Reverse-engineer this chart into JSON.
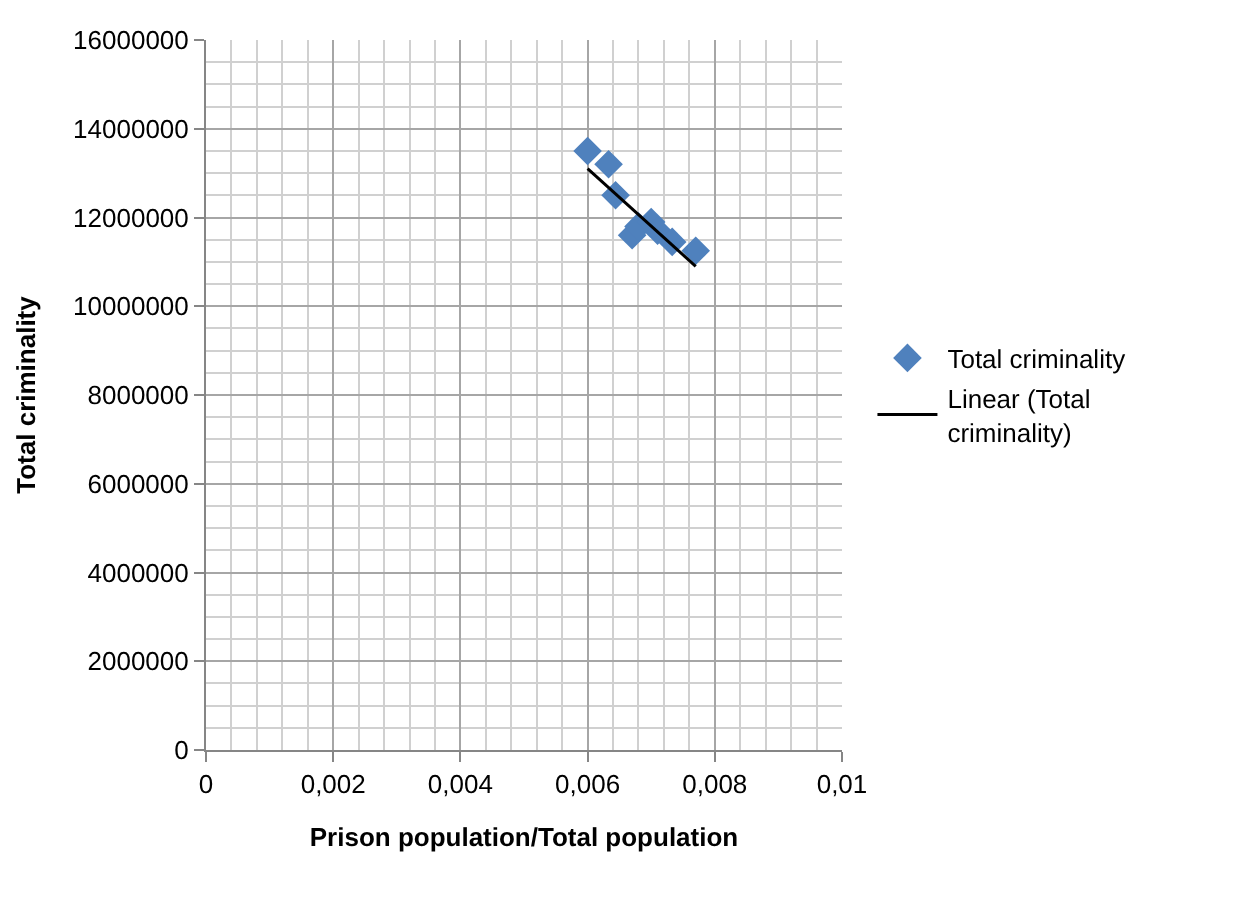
{
  "chart_data": {
    "type": "scatter",
    "xlabel": "Prison population/Total population",
    "ylabel": "Total criminality",
    "series": [
      {
        "name": "Total criminality",
        "color": "#4f81bd",
        "marker": "diamond",
        "x": [
          0.006,
          0.00633,
          0.00644,
          0.0067,
          0.0068,
          0.007,
          0.0071,
          0.00733,
          0.0077
        ],
        "values": [
          13500000,
          13200000,
          12500000,
          11600000,
          11800000,
          11900000,
          11700000,
          11450000,
          11250000
        ]
      },
      {
        "name": "Linear (Total criminality)",
        "type": "line",
        "color": "#000000",
        "marker": "none",
        "line_style": "solid",
        "x": [
          0.006,
          0.0077
        ],
        "values": [
          13100000,
          10900000
        ]
      }
    ],
    "xlim": [
      0,
      0.01
    ],
    "xticks": [
      0,
      {
        "value": 0.002,
        "label": "0,002"
      },
      {
        "value": 0.004,
        "label": "0,004"
      },
      {
        "value": 0.006,
        "label": "0,006"
      },
      {
        "value": 0.008,
        "label": "0,008"
      },
      {
        "value": 0.01,
        "label": "0,01"
      }
    ],
    "ylim": [
      0,
      16000000
    ],
    "yticks": [
      0,
      2000000,
      4000000,
      6000000,
      8000000,
      10000000,
      12000000,
      14000000,
      16000000
    ],
    "grid": true,
    "legend": "right"
  }
}
